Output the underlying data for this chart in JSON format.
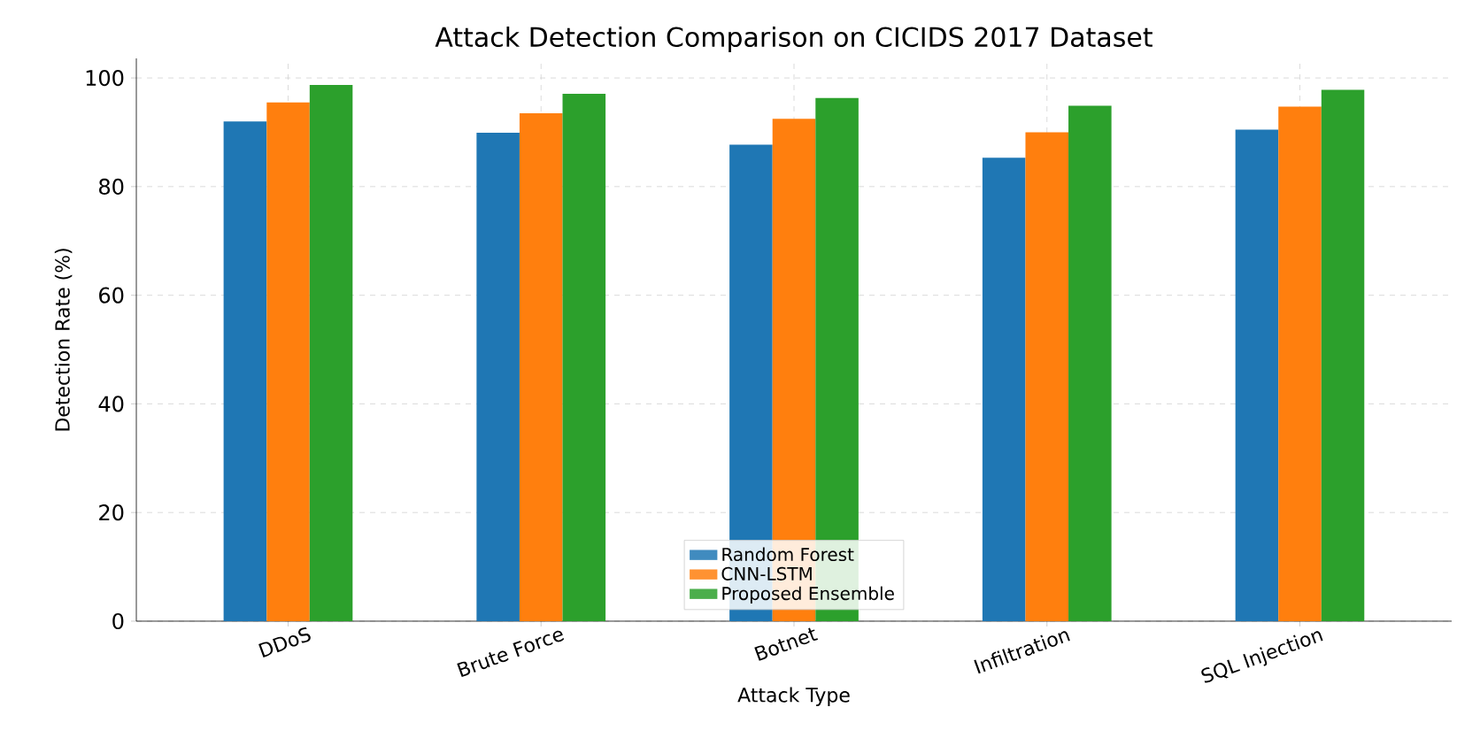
{
  "chart_data": {
    "type": "bar",
    "title": "Attack Detection Comparison on CICIDS 2017 Dataset",
    "xlabel": "Attack Type",
    "ylabel": "Detection Rate (%)",
    "categories": [
      "DDoS",
      "Brute Force",
      "Botnet",
      "Infiltration",
      "SQL Injection"
    ],
    "series": [
      {
        "name": "Random Forest",
        "color": "#1f77b4",
        "values": [
          92.0,
          89.9,
          87.7,
          85.3,
          90.5
        ]
      },
      {
        "name": "CNN-LSTM",
        "color": "#ff7f0e",
        "values": [
          95.5,
          93.5,
          92.5,
          90.0,
          94.7
        ]
      },
      {
        "name": "Proposed Ensemble",
        "color": "#2ca02c",
        "values": [
          98.7,
          97.1,
          96.3,
          94.9,
          97.8
        ]
      }
    ],
    "ylim": [
      0,
      103.6
    ],
    "yticks": [
      0,
      20,
      40,
      60,
      80,
      100
    ],
    "grid": true,
    "legend": "bottom"
  }
}
